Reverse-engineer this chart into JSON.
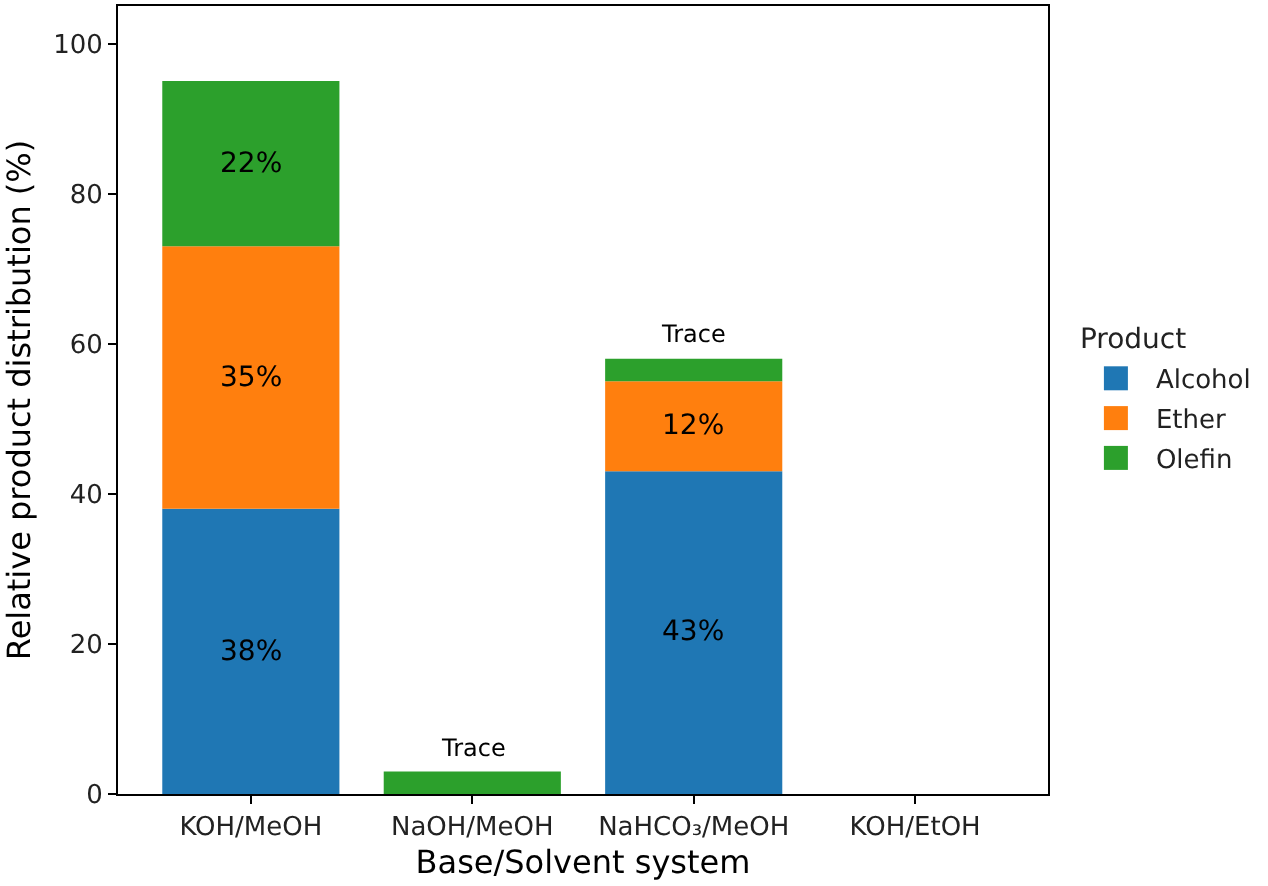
{
  "chart_data": {
    "type": "bar",
    "stacked": true,
    "xlabel": "Base/Solvent system",
    "ylabel": "Relative product distribution (%)",
    "legend_title": "Product",
    "legend": "right",
    "categories": [
      "KOH/MeOH",
      "NaOH/MeOH",
      "NaHCO₃/MeOH",
      "KOH/EtOH"
    ],
    "ylim": [
      0,
      105
    ],
    "yticks": [
      0,
      20,
      40,
      60,
      80,
      100
    ],
    "series": [
      {
        "name": "Alcohol",
        "color": "#1f77b4",
        "values": [
          38,
          0,
          43,
          0
        ],
        "value_labels": [
          "38%",
          null,
          "43%",
          null
        ]
      },
      {
        "name": "Ether",
        "color": "#ff7f0e",
        "values": [
          35,
          0,
          12,
          0
        ],
        "value_labels": [
          "35%",
          null,
          "12%",
          null
        ]
      },
      {
        "name": "Olefin",
        "color": "#2ca02c",
        "values": [
          22,
          3,
          3,
          0
        ],
        "value_labels": [
          "22%",
          "Trace",
          "Trace",
          null
        ]
      }
    ]
  }
}
